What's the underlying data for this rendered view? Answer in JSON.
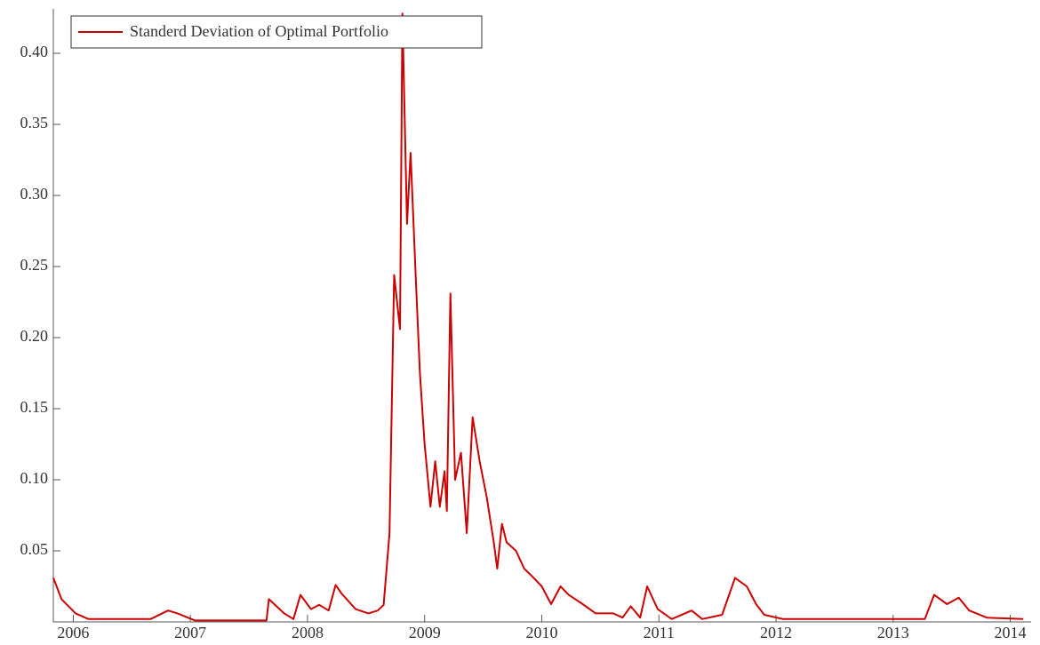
{
  "chart_data": {
    "type": "line",
    "x": [
      2005.83,
      2005.9,
      2006.02,
      2006.13,
      2006.66,
      2006.81,
      2006.89,
      2007.04,
      2007.65,
      2007.67,
      2007.8,
      2007.88,
      2007.94,
      2008.03,
      2008.1,
      2008.18,
      2008.24,
      2008.29,
      2008.41,
      2008.52,
      2008.6,
      2008.65,
      2008.7,
      2008.74,
      2008.79,
      2008.81,
      2008.85,
      2008.88,
      2008.93,
      2008.96,
      2009.0,
      2009.05,
      2009.09,
      2009.13,
      2009.17,
      2009.19,
      2009.22,
      2009.26,
      2009.31,
      2009.36,
      2009.41,
      2009.47,
      2009.53,
      2009.59,
      2009.62,
      2009.66,
      2009.7,
      2009.78,
      2009.85,
      2009.93,
      2010.0,
      2010.08,
      2010.16,
      2010.23,
      2010.35,
      2010.46,
      2010.61,
      2010.69,
      2010.76,
      2010.84,
      2010.9,
      2010.99,
      2011.11,
      2011.28,
      2011.37,
      2011.54,
      2011.65,
      2011.75,
      2011.83,
      2011.9,
      2012.06,
      2013.27,
      2013.35,
      2013.46,
      2013.56,
      2013.65,
      2013.8,
      2014.11
    ],
    "series": [
      {
        "name": "Standerd Deviation of Optimal Portfolio",
        "color": "#cc0000",
        "values": [
          0.031,
          0.016,
          0.006,
          0.002,
          0.002,
          0.008,
          0.006,
          0.001,
          0.001,
          0.016,
          0.006,
          0.002,
          0.019,
          0.009,
          0.012,
          0.008,
          0.026,
          0.02,
          0.009,
          0.006,
          0.008,
          0.012,
          0.0625,
          0.244,
          0.206,
          0.428,
          0.28,
          0.33,
          0.231,
          0.175,
          0.125,
          0.081,
          0.113,
          0.081,
          0.106,
          0.078,
          0.231,
          0.1,
          0.119,
          0.0625,
          0.144,
          0.113,
          0.088,
          0.056,
          0.0375,
          0.069,
          0.056,
          0.05,
          0.0375,
          0.031,
          0.025,
          0.0125,
          0.025,
          0.019,
          0.0125,
          0.006,
          0.006,
          0.003,
          0.011,
          0.003,
          0.025,
          0.009,
          0.002,
          0.008,
          0.002,
          0.005,
          0.031,
          0.025,
          0.0125,
          0.005,
          0.002,
          0.002,
          0.019,
          0.0125,
          0.017,
          0.008,
          0.003,
          0.002
        ]
      }
    ],
    "xlim": [
      2005.83,
      2014.14
    ],
    "xticks": [
      2006,
      2007,
      2008,
      2009,
      2010,
      2011,
      2012,
      2013,
      2014
    ],
    "ylim": [
      0,
      0.43
    ],
    "yticks": [
      0.05,
      {
        "value": 0.1,
        "label": "0.10"
      },
      0.15,
      {
        "value": 0.2,
        "label": "0.20"
      },
      0.25,
      {
        "value": 0.3,
        "label": "0.30"
      },
      0.35,
      {
        "value": 0.4,
        "label": "0.40"
      }
    ],
    "legend": "top-left"
  }
}
